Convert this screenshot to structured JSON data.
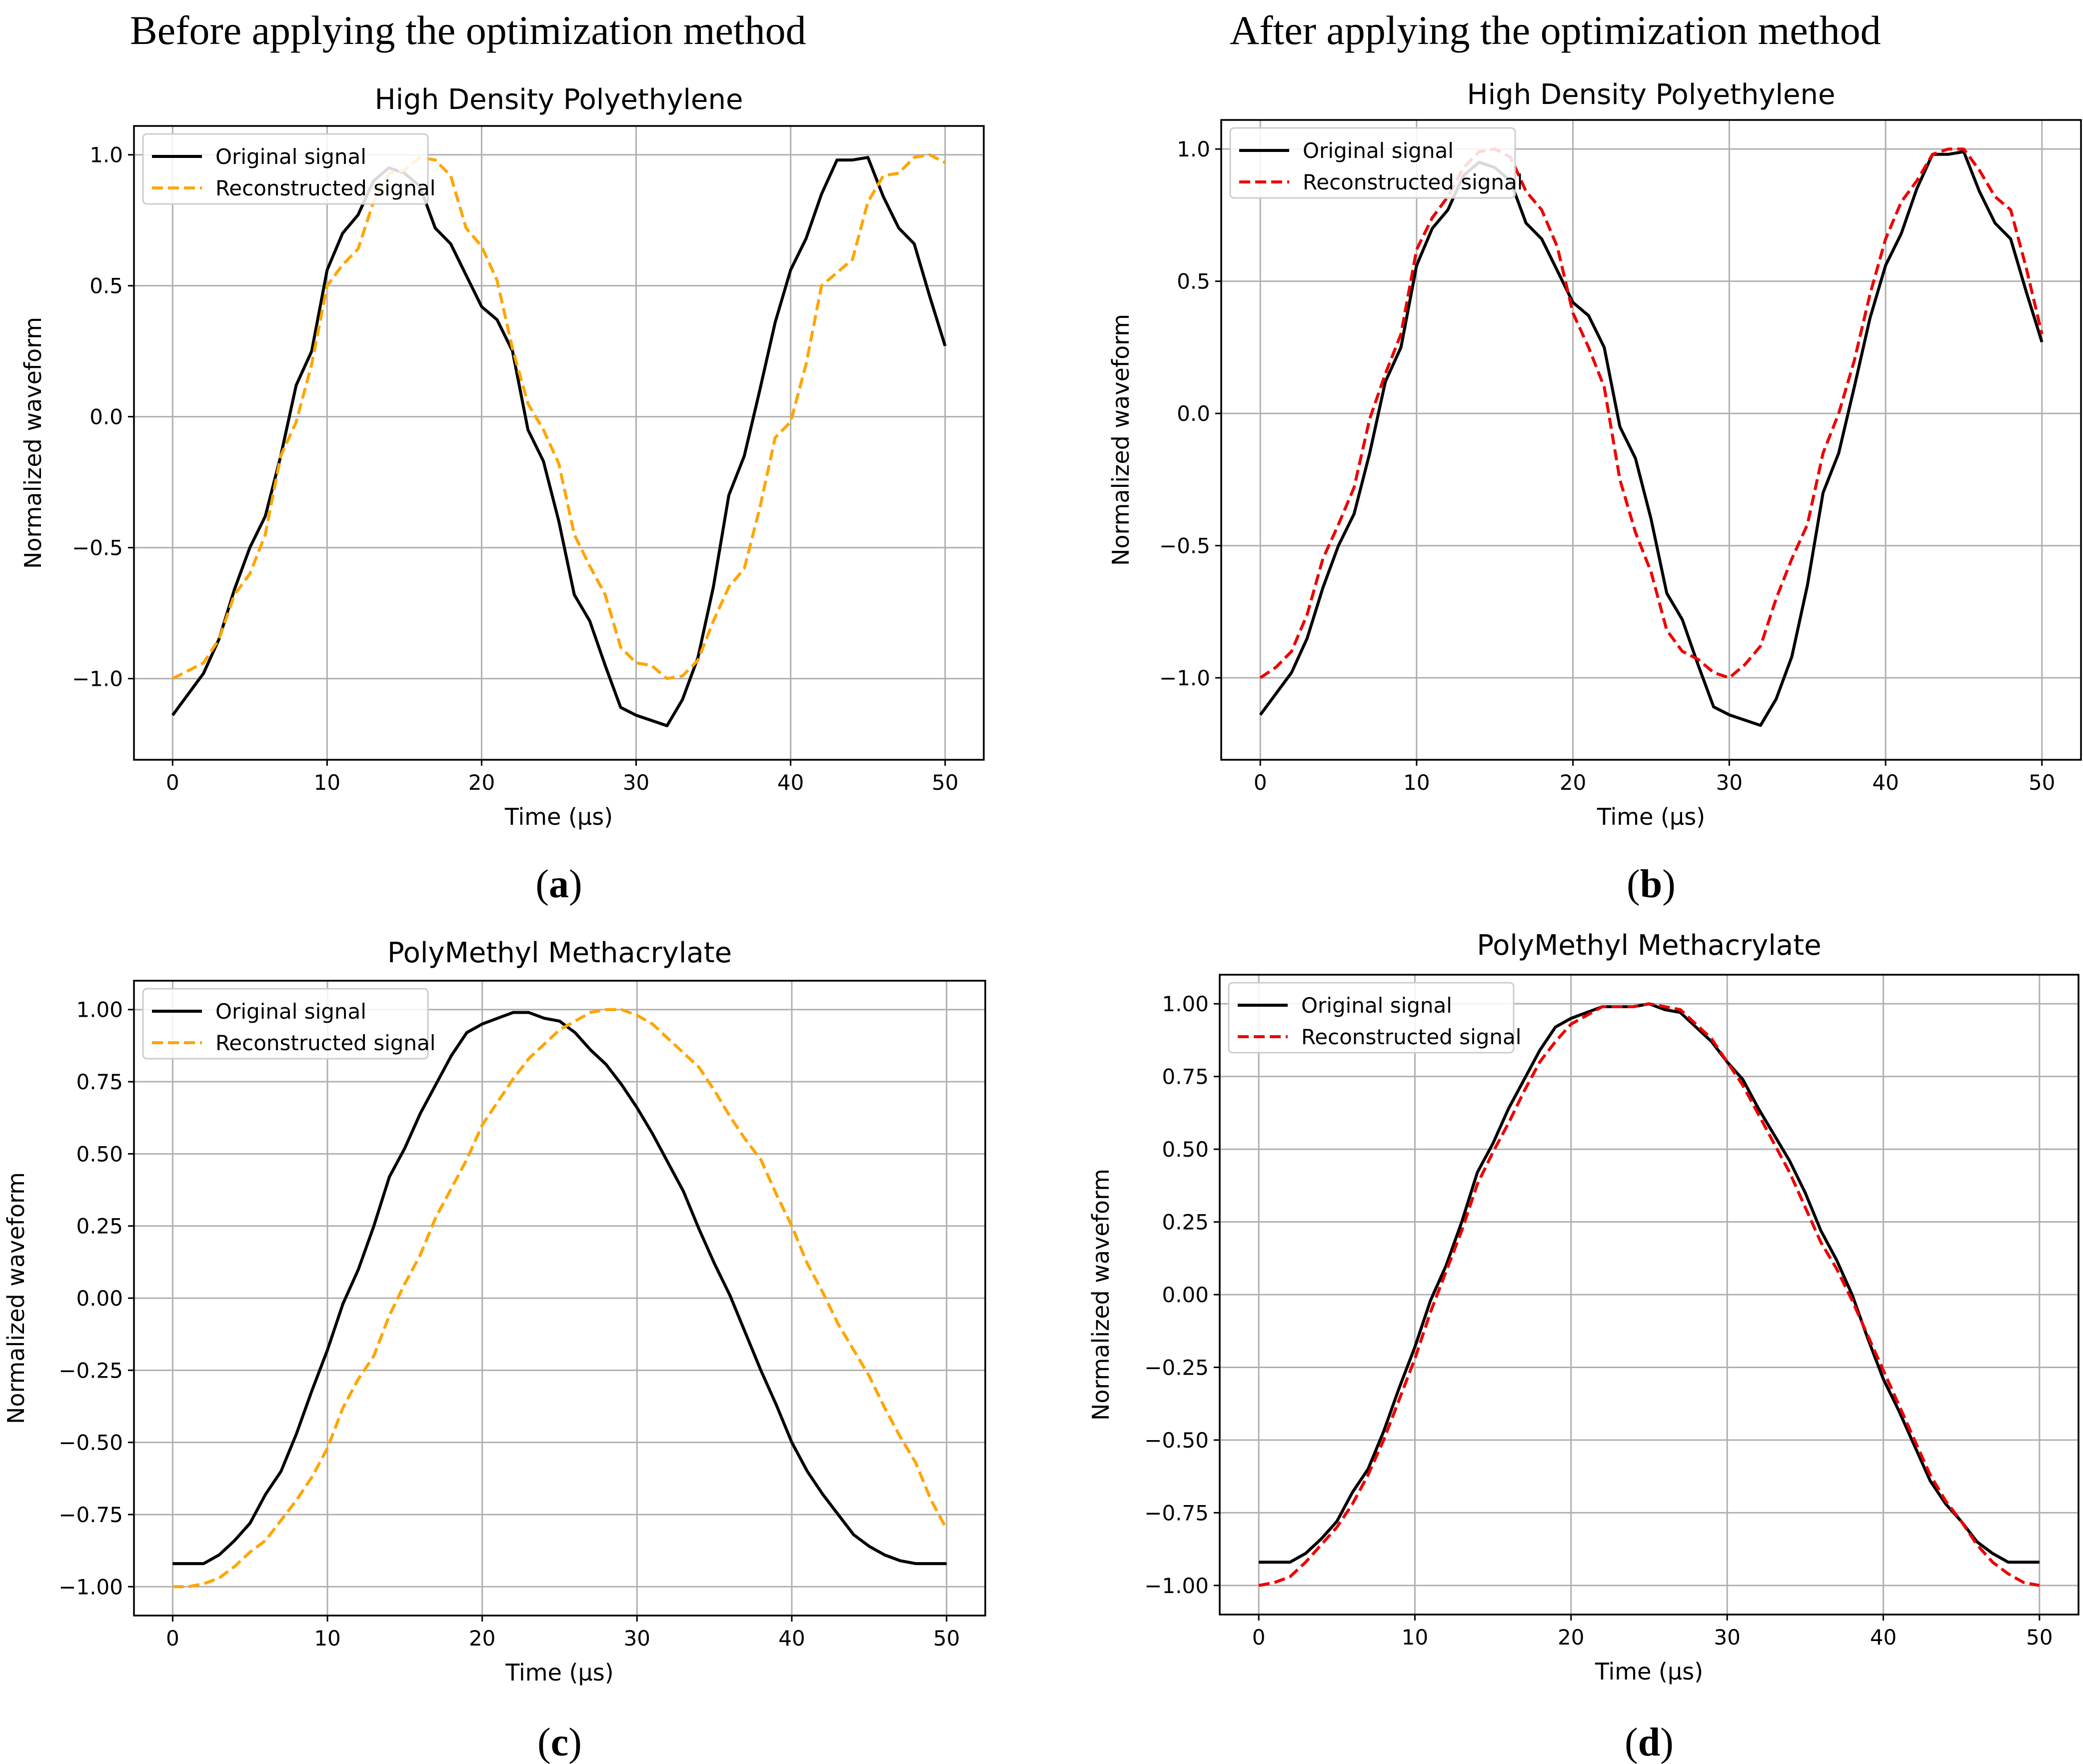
{
  "column_titles": {
    "left": "Before applying the optimization method",
    "right": "After applying the optimization method"
  },
  "style": {
    "original_color": "#000000",
    "reconstructed_before_color": "#FFA500",
    "reconstructed_after_color": "#EE0000",
    "grid_color": "#B0B0B0"
  },
  "chart_data": [
    {
      "id": "a",
      "sublabel": "a",
      "type": "line",
      "title": "High Density Polyethylene",
      "xlabel": "Time (µs)",
      "ylabel": "Normalized waveform",
      "xlim": [
        -2.5,
        52.5
      ],
      "ylim": [
        -1.31,
        1.11
      ],
      "xticks": [
        0,
        10,
        20,
        30,
        40,
        50
      ],
      "xtick_labels": [
        "0",
        "10",
        "20",
        "30",
        "40",
        "50"
      ],
      "yticks": [
        -1.0,
        -0.5,
        0.0,
        0.5,
        1.0
      ],
      "ytick_labels": [
        "−1.0",
        "−0.5",
        "0.0",
        "0.5",
        "1.0"
      ],
      "grid": true,
      "legend": "top-left",
      "series": [
        {
          "name": "Original signal",
          "style": "solid",
          "color_key": "original",
          "x": [
            0,
            1,
            2,
            3,
            4,
            5,
            6,
            7,
            8,
            9,
            10,
            11,
            12,
            13,
            14,
            15,
            16,
            17,
            18,
            19,
            20,
            21,
            22,
            23,
            24,
            25,
            26,
            27,
            28,
            29,
            30,
            31,
            32,
            33,
            34,
            35,
            36,
            37,
            38,
            39,
            40,
            41,
            42,
            43,
            44,
            45,
            46,
            47,
            48,
            49,
            50
          ],
          "y": [
            -1.14,
            -1.06,
            -0.98,
            -0.85,
            -0.66,
            -0.5,
            -0.38,
            -0.15,
            0.12,
            0.25,
            0.56,
            0.7,
            0.77,
            0.9,
            0.95,
            0.93,
            0.88,
            0.72,
            0.66,
            0.54,
            0.42,
            0.37,
            0.25,
            -0.05,
            -0.17,
            -0.4,
            -0.68,
            -0.78,
            -0.95,
            -1.11,
            -1.14,
            -1.16,
            -1.18,
            -1.08,
            -0.92,
            -0.65,
            -0.3,
            -0.15,
            0.1,
            0.36,
            0.56,
            0.68,
            0.85,
            0.98,
            0.98,
            0.99,
            0.84,
            0.72,
            0.66,
            0.46,
            0.27
          ]
        },
        {
          "name": "Reconstructed signal",
          "style": "dashed",
          "color_key": "reconstructed_before",
          "x": [
            0,
            1,
            2,
            3,
            4,
            5,
            6,
            7,
            8,
            9,
            10,
            11,
            12,
            13,
            14,
            15,
            16,
            17,
            18,
            19,
            20,
            21,
            22,
            23,
            24,
            25,
            26,
            27,
            28,
            29,
            30,
            31,
            32,
            33,
            34,
            35,
            36,
            37,
            38,
            39,
            40,
            41,
            42,
            43,
            44,
            45,
            46,
            47,
            48,
            49,
            50
          ],
          "y": [
            -1.0,
            -0.97,
            -0.94,
            -0.85,
            -0.68,
            -0.6,
            -0.45,
            -0.15,
            -0.02,
            0.2,
            0.5,
            0.58,
            0.64,
            0.82,
            0.93,
            0.94,
            0.99,
            0.98,
            0.92,
            0.72,
            0.65,
            0.52,
            0.26,
            0.05,
            -0.05,
            -0.18,
            -0.45,
            -0.57,
            -0.68,
            -0.88,
            -0.94,
            -0.95,
            -1.0,
            -0.99,
            -0.93,
            -0.78,
            -0.65,
            -0.58,
            -0.35,
            -0.08,
            -0.02,
            0.2,
            0.5,
            0.55,
            0.6,
            0.82,
            0.92,
            0.93,
            0.99,
            1.0,
            0.97
          ]
        }
      ]
    },
    {
      "id": "b",
      "sublabel": "b",
      "type": "line",
      "title": "High Density Polyethylene",
      "xlabel": "Time (µs)",
      "ylabel": "Normalized waveform",
      "xlim": [
        -2.5,
        52.5
      ],
      "ylim": [
        -1.31,
        1.11
      ],
      "xticks": [
        0,
        10,
        20,
        30,
        40,
        50
      ],
      "xtick_labels": [
        "0",
        "10",
        "20",
        "30",
        "40",
        "50"
      ],
      "yticks": [
        -1.0,
        -0.5,
        0.0,
        0.5,
        1.0
      ],
      "ytick_labels": [
        "−1.0",
        "−0.5",
        "0.0",
        "0.5",
        "1.0"
      ],
      "grid": true,
      "legend": "top-left",
      "series": [
        {
          "name": "Original signal",
          "style": "solid",
          "color_key": "original",
          "x": [
            0,
            1,
            2,
            3,
            4,
            5,
            6,
            7,
            8,
            9,
            10,
            11,
            12,
            13,
            14,
            15,
            16,
            17,
            18,
            19,
            20,
            21,
            22,
            23,
            24,
            25,
            26,
            27,
            28,
            29,
            30,
            31,
            32,
            33,
            34,
            35,
            36,
            37,
            38,
            39,
            40,
            41,
            42,
            43,
            44,
            45,
            46,
            47,
            48,
            49,
            50
          ],
          "y": [
            -1.14,
            -1.06,
            -0.98,
            -0.85,
            -0.66,
            -0.5,
            -0.38,
            -0.15,
            0.12,
            0.25,
            0.56,
            0.7,
            0.77,
            0.9,
            0.95,
            0.93,
            0.88,
            0.72,
            0.66,
            0.54,
            0.42,
            0.37,
            0.25,
            -0.05,
            -0.17,
            -0.4,
            -0.68,
            -0.78,
            -0.95,
            -1.11,
            -1.14,
            -1.16,
            -1.18,
            -1.08,
            -0.92,
            -0.65,
            -0.3,
            -0.15,
            0.1,
            0.36,
            0.56,
            0.68,
            0.85,
            0.98,
            0.98,
            0.99,
            0.84,
            0.72,
            0.66,
            0.46,
            0.27
          ]
        },
        {
          "name": "Reconstructed signal",
          "style": "dashed",
          "color_key": "reconstructed_after",
          "x": [
            0,
            1,
            2,
            3,
            4,
            5,
            6,
            7,
            8,
            9,
            10,
            11,
            12,
            13,
            14,
            15,
            16,
            17,
            18,
            19,
            20,
            21,
            22,
            23,
            24,
            25,
            26,
            27,
            28,
            29,
            30,
            31,
            32,
            33,
            34,
            35,
            36,
            37,
            38,
            39,
            40,
            41,
            42,
            43,
            44,
            45,
            46,
            47,
            48,
            49,
            50
          ],
          "y": [
            -1.0,
            -0.96,
            -0.9,
            -0.76,
            -0.55,
            -0.42,
            -0.28,
            -0.02,
            0.15,
            0.3,
            0.62,
            0.74,
            0.82,
            0.93,
            0.99,
            1.0,
            0.97,
            0.84,
            0.77,
            0.63,
            0.38,
            0.25,
            0.1,
            -0.25,
            -0.45,
            -0.6,
            -0.82,
            -0.9,
            -0.93,
            -0.98,
            -1.0,
            -0.95,
            -0.88,
            -0.7,
            -0.55,
            -0.42,
            -0.15,
            0.0,
            0.2,
            0.45,
            0.66,
            0.8,
            0.88,
            0.98,
            1.0,
            1.0,
            0.92,
            0.82,
            0.77,
            0.55,
            0.3
          ]
        }
      ]
    },
    {
      "id": "c",
      "sublabel": "c",
      "type": "line",
      "title": "PolyMethyl Methacrylate",
      "xlabel": "Time (µs)",
      "ylabel": "Normalized waveform",
      "xlim": [
        -2.5,
        52.5
      ],
      "ylim": [
        -1.1,
        1.1
      ],
      "xticks": [
        0,
        10,
        20,
        30,
        40,
        50
      ],
      "xtick_labels": [
        "0",
        "10",
        "20",
        "30",
        "40",
        "50"
      ],
      "yticks": [
        -1.0,
        -0.75,
        -0.5,
        -0.25,
        0.0,
        0.25,
        0.5,
        0.75,
        1.0
      ],
      "ytick_labels": [
        "−1.00",
        "−0.75",
        "−0.50",
        "−0.25",
        "0.00",
        "0.25",
        "0.50",
        "0.75",
        "1.00"
      ],
      "grid": true,
      "legend": "top-left",
      "series": [
        {
          "name": "Original signal",
          "style": "solid",
          "color_key": "original",
          "x": [
            0,
            1,
            2,
            3,
            4,
            5,
            6,
            7,
            8,
            9,
            10,
            11,
            12,
            13,
            14,
            15,
            16,
            17,
            18,
            19,
            20,
            21,
            22,
            23,
            24,
            25,
            26,
            27,
            28,
            29,
            30,
            31,
            32,
            33,
            34,
            35,
            36,
            37,
            38,
            39,
            40,
            41,
            42,
            43,
            44,
            45,
            46,
            47,
            48,
            49,
            50
          ],
          "y": [
            -0.92,
            -0.92,
            -0.92,
            -0.89,
            -0.84,
            -0.78,
            -0.68,
            -0.6,
            -0.47,
            -0.32,
            -0.18,
            -0.02,
            0.1,
            0.25,
            0.42,
            0.52,
            0.64,
            0.74,
            0.84,
            0.92,
            0.95,
            0.97,
            0.99,
            0.99,
            0.97,
            0.96,
            0.92,
            0.86,
            0.81,
            0.74,
            0.66,
            0.57,
            0.47,
            0.37,
            0.24,
            0.12,
            0.01,
            -0.12,
            -0.25,
            -0.37,
            -0.5,
            -0.6,
            -0.68,
            -0.75,
            -0.82,
            -0.86,
            -0.89,
            -0.91,
            -0.92,
            -0.92,
            -0.92
          ]
        },
        {
          "name": "Reconstructed signal",
          "style": "dashed",
          "color_key": "reconstructed_before",
          "x": [
            0,
            1,
            2,
            3,
            4,
            5,
            6,
            7,
            8,
            9,
            10,
            11,
            12,
            13,
            14,
            15,
            16,
            17,
            18,
            19,
            20,
            21,
            22,
            23,
            24,
            25,
            26,
            27,
            28,
            29,
            30,
            31,
            32,
            33,
            34,
            35,
            36,
            37,
            38,
            39,
            40,
            41,
            42,
            43,
            44,
            45,
            46,
            47,
            48,
            49,
            50
          ],
          "y": [
            -1.0,
            -1.0,
            -0.99,
            -0.97,
            -0.93,
            -0.88,
            -0.84,
            -0.77,
            -0.7,
            -0.62,
            -0.52,
            -0.38,
            -0.28,
            -0.2,
            -0.06,
            0.05,
            0.15,
            0.28,
            0.38,
            0.48,
            0.6,
            0.68,
            0.76,
            0.83,
            0.88,
            0.93,
            0.96,
            0.99,
            1.0,
            1.0,
            0.98,
            0.95,
            0.9,
            0.85,
            0.8,
            0.72,
            0.63,
            0.55,
            0.48,
            0.36,
            0.25,
            0.12,
            0.02,
            -0.09,
            -0.18,
            -0.27,
            -0.38,
            -0.48,
            -0.57,
            -0.7,
            -0.8
          ]
        }
      ]
    },
    {
      "id": "d",
      "sublabel": "d",
      "type": "line",
      "title": "PolyMethyl Methacrylate",
      "xlabel": "Time (µs)",
      "ylabel": "Normalized waveform",
      "xlim": [
        -2.5,
        52.5
      ],
      "ylim": [
        -1.1,
        1.1
      ],
      "xticks": [
        0,
        10,
        20,
        30,
        40,
        50
      ],
      "xtick_labels": [
        "0",
        "10",
        "20",
        "30",
        "40",
        "50"
      ],
      "yticks": [
        -1.0,
        -0.75,
        -0.5,
        -0.25,
        0.0,
        0.25,
        0.5,
        0.75,
        1.0
      ],
      "ytick_labels": [
        "−1.00",
        "−0.75",
        "−0.50",
        "−0.25",
        "0.00",
        "0.25",
        "0.50",
        "0.75",
        "1.00"
      ],
      "grid": true,
      "legend": "top-left",
      "series": [
        {
          "name": "Original signal",
          "style": "solid",
          "color_key": "original",
          "x": [
            0,
            1,
            2,
            3,
            4,
            5,
            6,
            7,
            8,
            9,
            10,
            11,
            12,
            13,
            14,
            15,
            16,
            17,
            18,
            19,
            20,
            21,
            22,
            23,
            24,
            25,
            26,
            27,
            28,
            29,
            30,
            31,
            32,
            33,
            34,
            35,
            36,
            37,
            38,
            39,
            40,
            41,
            42,
            43,
            44,
            45,
            46,
            47,
            48,
            49,
            50
          ],
          "y": [
            -0.92,
            -0.92,
            -0.92,
            -0.89,
            -0.84,
            -0.78,
            -0.68,
            -0.6,
            -0.47,
            -0.32,
            -0.18,
            -0.02,
            0.1,
            0.25,
            0.42,
            0.52,
            0.64,
            0.74,
            0.84,
            0.92,
            0.95,
            0.97,
            0.99,
            0.99,
            0.99,
            1.0,
            0.98,
            0.97,
            0.92,
            0.87,
            0.8,
            0.74,
            0.64,
            0.55,
            0.46,
            0.35,
            0.22,
            0.12,
            0.0,
            -0.15,
            -0.29,
            -0.4,
            -0.52,
            -0.64,
            -0.72,
            -0.78,
            -0.85,
            -0.89,
            -0.92,
            -0.92,
            -0.92
          ]
        },
        {
          "name": "Reconstructed signal",
          "style": "dashed",
          "color_key": "reconstructed_after",
          "x": [
            0,
            1,
            2,
            3,
            4,
            5,
            6,
            7,
            8,
            9,
            10,
            11,
            12,
            13,
            14,
            15,
            16,
            17,
            18,
            19,
            20,
            21,
            22,
            23,
            24,
            25,
            26,
            27,
            28,
            29,
            30,
            31,
            32,
            33,
            34,
            35,
            36,
            37,
            38,
            39,
            40,
            41,
            42,
            43,
            44,
            45,
            46,
            47,
            48,
            49,
            50
          ],
          "y": [
            -1.0,
            -0.99,
            -0.97,
            -0.92,
            -0.86,
            -0.8,
            -0.72,
            -0.62,
            -0.5,
            -0.36,
            -0.22,
            -0.06,
            0.08,
            0.22,
            0.38,
            0.49,
            0.59,
            0.7,
            0.8,
            0.87,
            0.93,
            0.96,
            0.99,
            0.99,
            0.99,
            1.0,
            0.99,
            0.98,
            0.93,
            0.88,
            0.8,
            0.72,
            0.62,
            0.52,
            0.42,
            0.3,
            0.18,
            0.09,
            -0.02,
            -0.14,
            -0.26,
            -0.38,
            -0.5,
            -0.62,
            -0.71,
            -0.78,
            -0.86,
            -0.92,
            -0.96,
            -0.99,
            -1.0
          ]
        }
      ]
    }
  ]
}
